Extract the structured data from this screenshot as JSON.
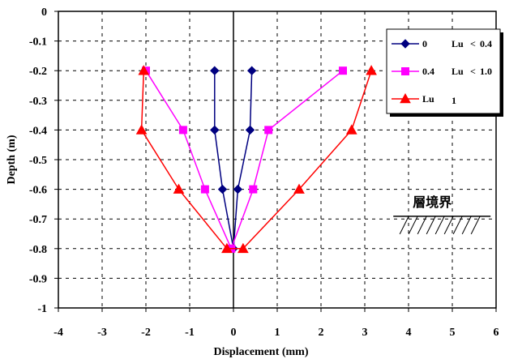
{
  "chart_data": {
    "type": "line",
    "xlabel": "Displacement (mm)",
    "ylabel": "Depth (m)",
    "xlim": [
      -4,
      6
    ],
    "ylim": [
      -1,
      0
    ],
    "xticks": [
      "-4",
      "-3",
      "-2",
      "-1",
      "0",
      "1",
      "2",
      "3",
      "4",
      "5",
      "6"
    ],
    "yticks": [
      "0",
      "-0.1",
      "-0.2",
      "-0.3",
      "-0.4",
      "-0.5",
      "-0.6",
      "-0.7",
      "-0.8",
      "-0.9",
      "-1"
    ],
    "grid": true,
    "legend_position": "top-right",
    "series": [
      {
        "name": "0  Lu < 0.4",
        "legend_parts": [
          "0",
          "Lu",
          "<",
          "0.4"
        ],
        "color": "#000080",
        "marker": "diamond",
        "points": [
          [
            0.42,
            -0.2
          ],
          [
            0.38,
            -0.4
          ],
          [
            0.1,
            -0.6
          ],
          [
            0.0,
            -0.8
          ],
          [
            -0.25,
            -0.6
          ],
          [
            -0.43,
            -0.4
          ],
          [
            -0.43,
            -0.2
          ]
        ]
      },
      {
        "name": "0.4  Lu < 1.0",
        "legend_parts": [
          "0.4",
          "Lu",
          "<",
          "1.0"
        ],
        "color": "#ff00ff",
        "marker": "square",
        "points": [
          [
            2.5,
            -0.2
          ],
          [
            0.8,
            -0.4
          ],
          [
            0.45,
            -0.6
          ],
          [
            -0.05,
            -0.8
          ],
          [
            -0.65,
            -0.6
          ],
          [
            -1.15,
            -0.4
          ],
          [
            -2.0,
            -0.2
          ]
        ]
      },
      {
        "name": "Lu  1",
        "legend_parts": [
          "Lu",
          "1"
        ],
        "color": "#ff0000",
        "marker": "triangle",
        "points": [
          [
            3.15,
            -0.2
          ],
          [
            2.7,
            -0.4
          ],
          [
            1.5,
            -0.6
          ],
          [
            0.22,
            -0.8
          ],
          [
            -0.15,
            -0.8
          ],
          [
            -1.25,
            -0.6
          ],
          [
            -2.1,
            -0.4
          ],
          [
            -2.05,
            -0.2
          ]
        ]
      }
    ],
    "annotation": {
      "text": "層境界",
      "x": 3.8,
      "y": -0.68
    }
  }
}
